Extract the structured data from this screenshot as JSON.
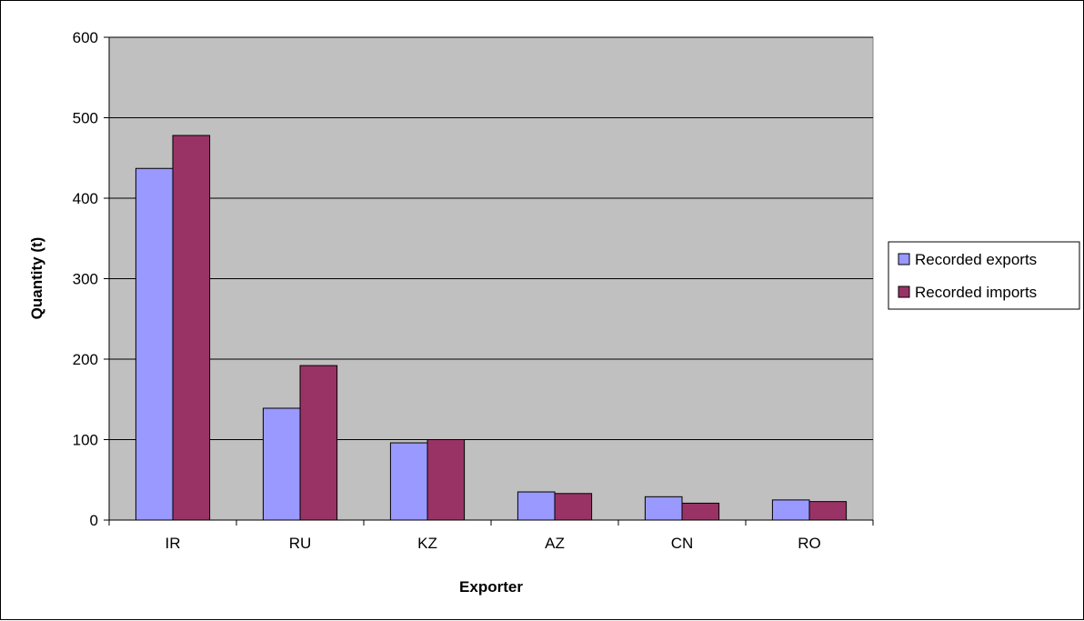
{
  "chart_data": {
    "type": "bar",
    "title": "",
    "xlabel": "Exporter",
    "ylabel": "Quantity (t)",
    "categories": [
      "IR",
      "RU",
      "KZ",
      "AZ",
      "CN",
      "RO"
    ],
    "series": [
      {
        "name": "Recorded exports",
        "values": [
          437,
          139,
          96,
          35,
          29,
          25
        ],
        "color": "#9999ff"
      },
      {
        "name": "Recorded imports",
        "values": [
          478,
          192,
          100,
          33,
          21,
          23
        ],
        "color": "#993366"
      }
    ],
    "ylim": [
      0,
      600
    ],
    "yticks": [
      "0",
      "100",
      "200",
      "300",
      "400",
      "500",
      "600"
    ],
    "grid": true,
    "plot_background": "#c0c0c0",
    "legend_position": "right"
  }
}
